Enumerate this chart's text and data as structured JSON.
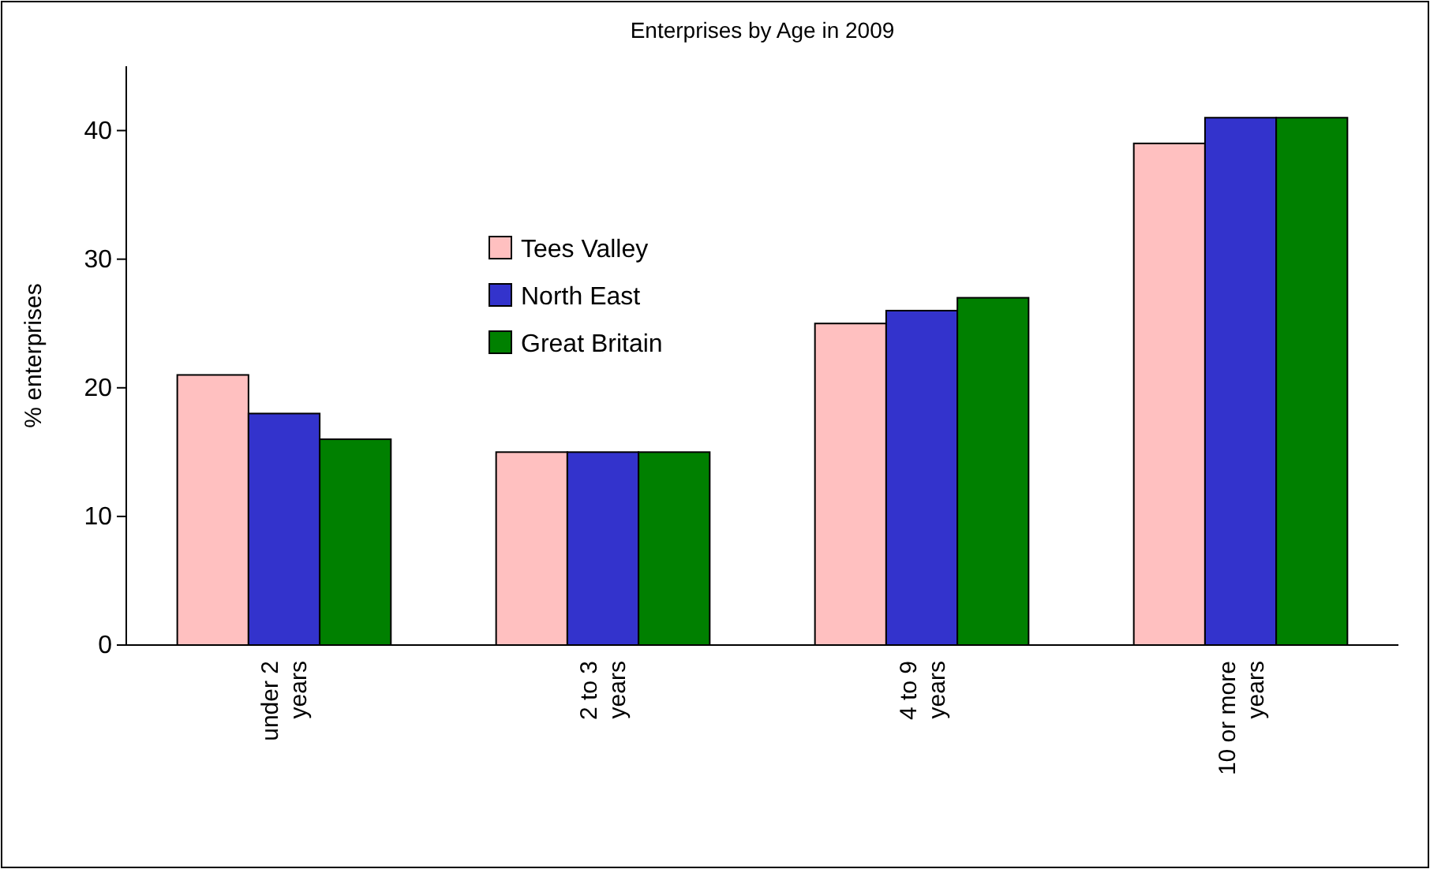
{
  "chart_data": {
    "type": "bar",
    "title": "Enterprises by Age in 2009",
    "ylabel": "% enterprises",
    "categories": [
      "under 2 years",
      "2 to 3 years",
      "4 to 9 years",
      "10 or more years"
    ],
    "series": [
      {
        "name": "Tees Valley",
        "color": "#ffc0c0",
        "values": [
          21,
          15,
          25,
          39
        ]
      },
      {
        "name": "North East",
        "color": "#3333cc",
        "values": [
          18,
          15,
          26,
          41
        ]
      },
      {
        "name": "Great Britain",
        "color": "#008000",
        "values": [
          16,
          15,
          27,
          41
        ]
      }
    ],
    "ylim": [
      0,
      45
    ],
    "yticks": [
      0,
      10,
      20,
      30,
      40
    ],
    "grid": false,
    "legend": "top left"
  }
}
